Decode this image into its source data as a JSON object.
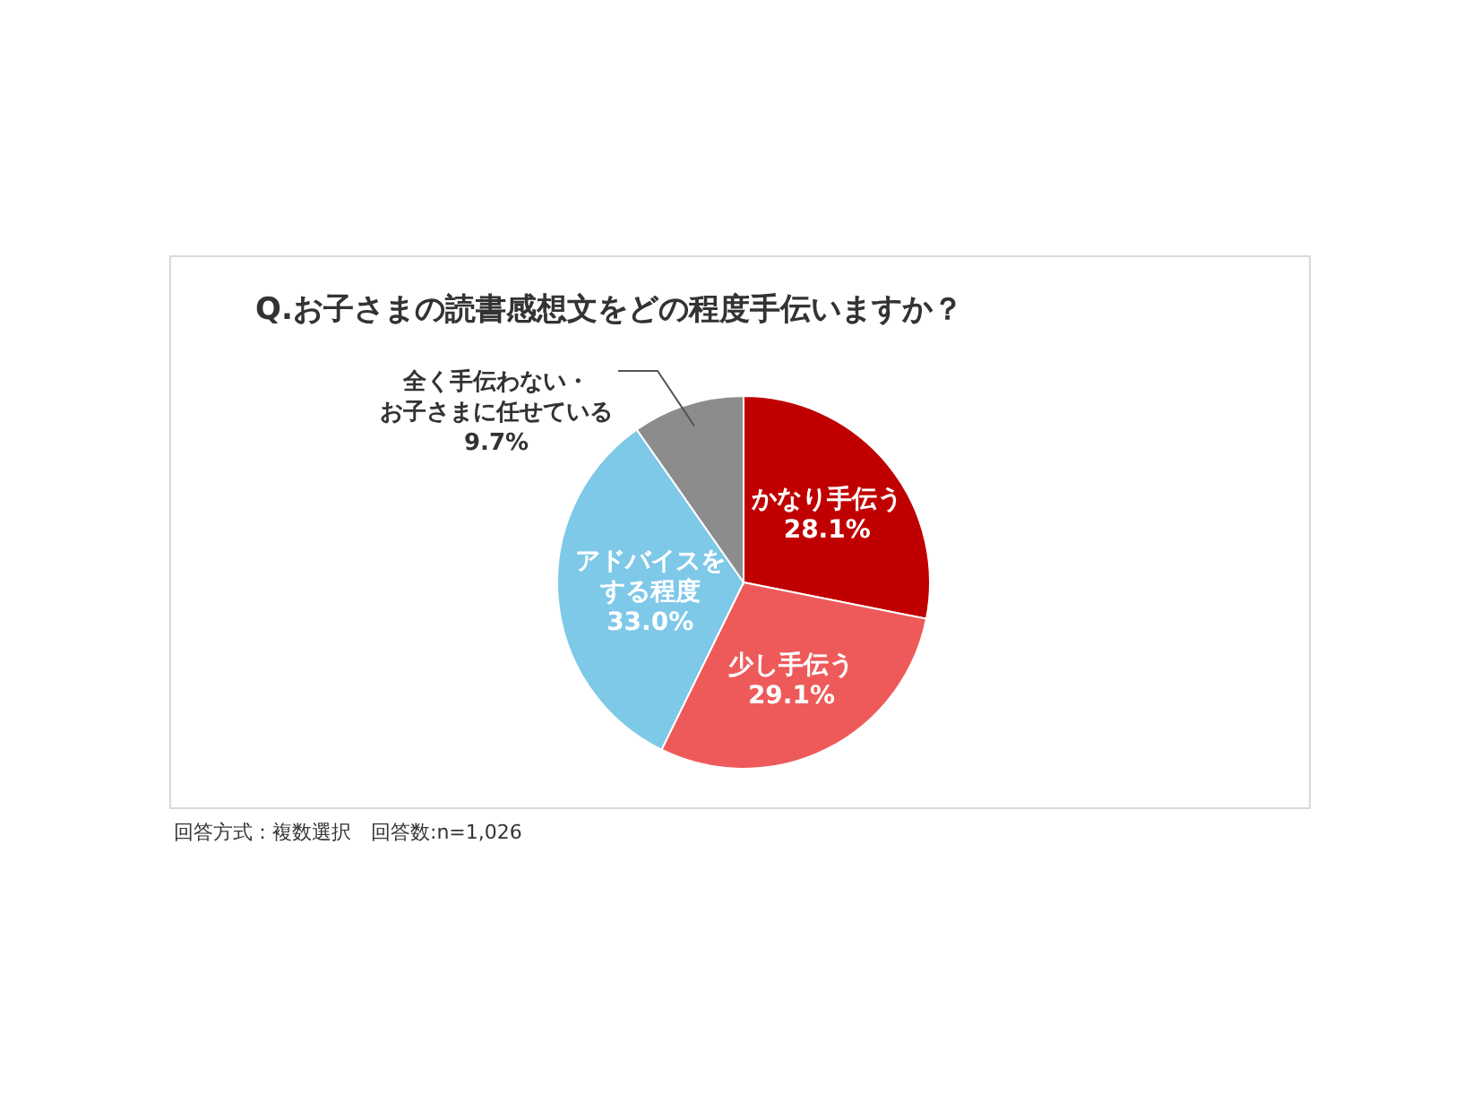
{
  "chart_data": {
    "type": "pie",
    "title": "Q.お子さまの読書感想文をどの程度手伝いますか？",
    "categories": [
      "かなり手伝う",
      "少し手伝う",
      "アドバイスをする程度",
      "全く手伝わない・お子さまに任せている"
    ],
    "values": [
      28.1,
      29.1,
      33.0,
      9.7
    ],
    "value_labels": [
      "28.1%",
      "29.1%",
      "33.0%",
      "9.7%"
    ],
    "colors": [
      "#c00000",
      "#ee5a5a",
      "#7ec8e8",
      "#8c8c8c"
    ],
    "annotations": [
      "回答方式：複数選択　回答数:n=1,026"
    ]
  }
}
